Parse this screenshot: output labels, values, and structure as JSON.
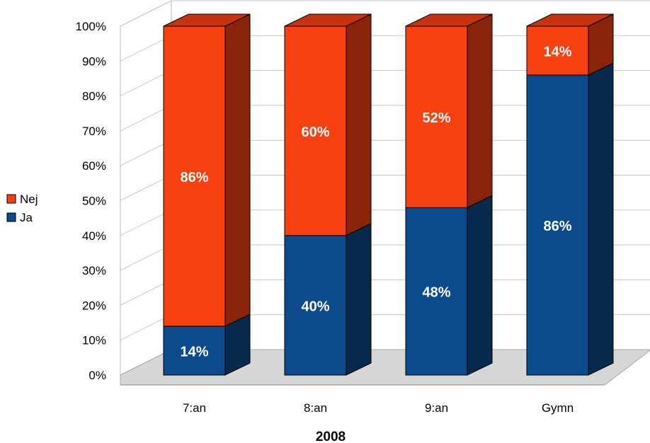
{
  "chart_data": {
    "type": "bar",
    "stacked": true,
    "percent": true,
    "three_d": true,
    "title": "",
    "xlabel": "2008",
    "ylabel": "",
    "ylim": [
      0,
      100
    ],
    "yticks": [
      "0%",
      "10%",
      "20%",
      "30%",
      "40%",
      "50%",
      "60%",
      "70%",
      "80%",
      "90%",
      "100%"
    ],
    "categories": [
      "7:an",
      "8:an",
      "9:an",
      "Gymn"
    ],
    "series": [
      {
        "name": "Ja",
        "values": [
          14,
          40,
          48,
          86
        ],
        "labels": [
          "14%",
          "40%",
          "48%",
          "86%"
        ],
        "color": "#0b4a8b"
      },
      {
        "name": "Nej",
        "values": [
          86,
          60,
          52,
          14
        ],
        "labels": [
          "86%",
          "60%",
          "52%",
          "14%"
        ],
        "color": "#f94010"
      }
    ],
    "legend": {
      "position": "left",
      "order": [
        "Nej",
        "Ja"
      ]
    },
    "grid": true
  }
}
